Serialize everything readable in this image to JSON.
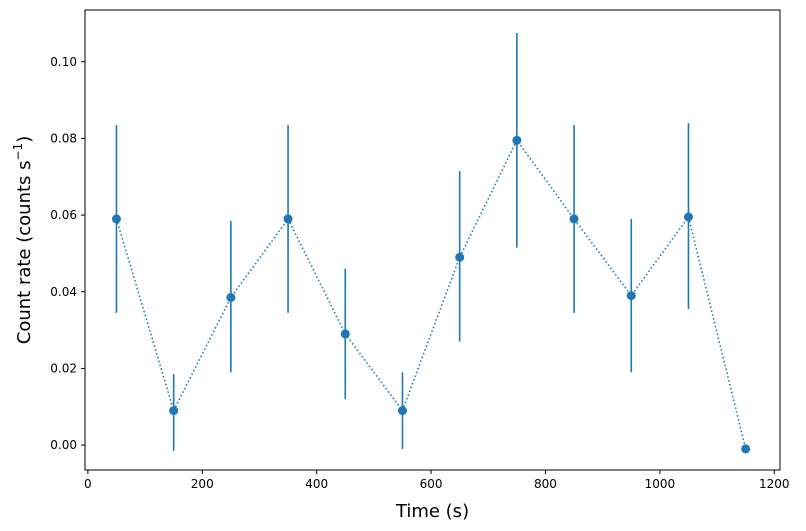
{
  "chart_data": {
    "type": "scatter",
    "xlabel": "Time (s)",
    "ylabel_main": "Count rate (counts s",
    "ylabel_sup": "−1",
    "ylabel_close": ")",
    "xlim": [
      -5,
      1210
    ],
    "ylim": [
      -0.0065,
      0.1135
    ],
    "xticks": [
      0,
      200,
      400,
      600,
      800,
      1000,
      1200
    ],
    "yticks": [
      0.0,
      0.02,
      0.04,
      0.06,
      0.08,
      0.1
    ],
    "ytick_labels": [
      "0.00",
      "0.02",
      "0.04",
      "0.06",
      "0.08",
      "0.10"
    ],
    "color": "#1f77b4",
    "line_style": "dotted",
    "grid": false,
    "series": [
      {
        "x": [
          50,
          150,
          250,
          350,
          450,
          550,
          650,
          750,
          850,
          950,
          1050,
          1150
        ],
        "y": [
          0.059,
          0.009,
          0.0385,
          0.059,
          0.029,
          0.009,
          0.049,
          0.0795,
          0.059,
          0.039,
          0.0595,
          -0.001
        ],
        "ylow": [
          0.0345,
          -0.0015,
          0.019,
          0.0345,
          0.012,
          -0.001,
          0.027,
          0.0515,
          0.0345,
          0.019,
          0.0355,
          null
        ],
        "yhigh": [
          0.0835,
          0.0185,
          0.0585,
          0.0835,
          0.046,
          0.019,
          0.0715,
          0.1075,
          0.0835,
          0.059,
          0.084,
          null
        ]
      }
    ]
  }
}
